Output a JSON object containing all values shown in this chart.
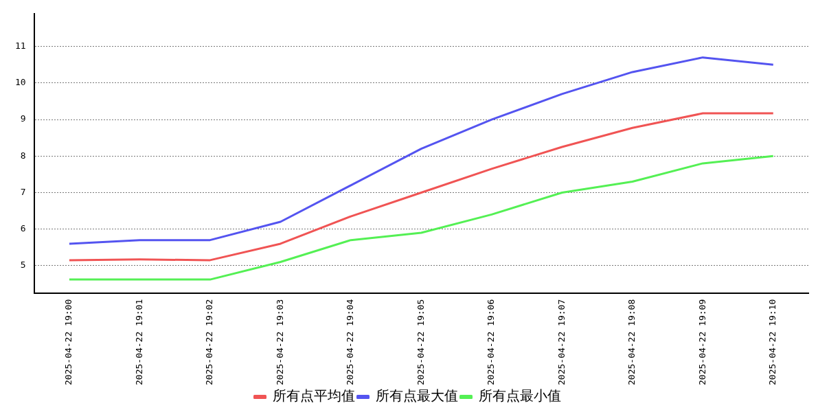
{
  "chart_data": {
    "type": "line",
    "categories": [
      "2025-04-22 19:00",
      "2025-04-22 19:01",
      "2025-04-22 19:02",
      "2025-04-22 19:03",
      "2025-04-22 19:04",
      "2025-04-22 19:05",
      "2025-04-22 19:06",
      "2025-04-22 19:07",
      "2025-04-22 19:08",
      "2025-04-22 19:09",
      "2025-04-22 19:10"
    ],
    "series": [
      {
        "name": "所有点平均值",
        "color": "#f05454",
        "values": [
          5.15,
          5.17,
          5.15,
          5.6,
          6.35,
          7.0,
          7.65,
          8.25,
          8.77,
          9.17,
          9.17
        ]
      },
      {
        "name": "所有点最大值",
        "color": "#5454f0",
        "values": [
          5.6,
          5.7,
          5.7,
          6.2,
          7.2,
          8.2,
          9.0,
          9.7,
          10.3,
          10.7,
          10.5
        ]
      },
      {
        "name": "所有点最小值",
        "color": "#54f054",
        "values": [
          4.62,
          4.62,
          4.62,
          5.1,
          5.7,
          5.9,
          6.4,
          7.0,
          7.3,
          7.8,
          8.0
        ]
      }
    ],
    "ylim": [
      4.25,
      11.9
    ],
    "yticks": [
      5,
      6,
      7,
      8,
      9,
      10,
      11
    ],
    "grid": "y",
    "legend": "bottom",
    "marker": "none",
    "line_style": "solid"
  }
}
